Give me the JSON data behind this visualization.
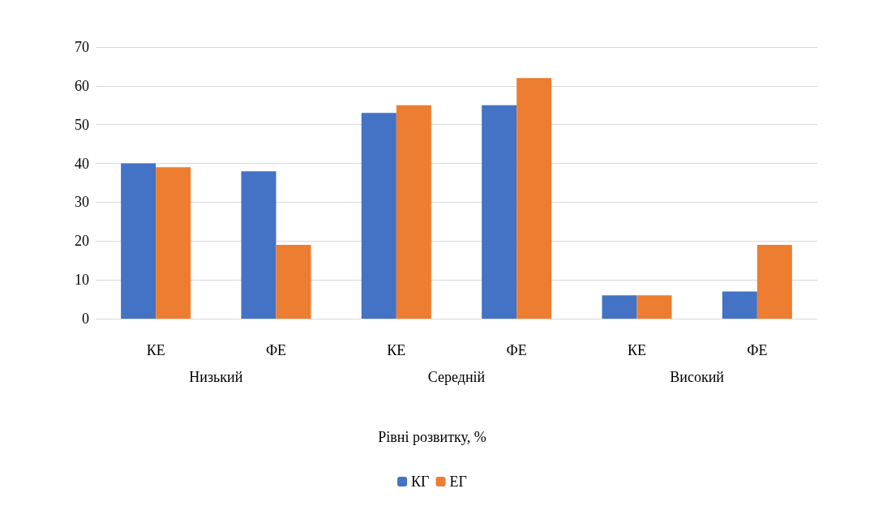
{
  "chart_data": {
    "type": "bar",
    "categories": [
      "КЕ",
      "ФЕ",
      "КЕ",
      "ФЕ",
      "КЕ",
      "ФЕ"
    ],
    "annotations": [
      "Низький",
      "Середній",
      "Високий"
    ],
    "xlabel": "Рівні розвитку, %",
    "series": [
      {
        "name": "КГ",
        "color": "#4472c4",
        "values": [
          40,
          38,
          53,
          55,
          6,
          7
        ]
      },
      {
        "name": "ЕГ",
        "color": "#ed7d31",
        "values": [
          39,
          19,
          55,
          62,
          6,
          19
        ]
      }
    ],
    "ylim": [
      0,
      70
    ],
    "yticks": [
      0,
      10,
      20,
      30,
      40,
      50,
      60,
      70
    ],
    "grid": "y",
    "legend": "bottom"
  }
}
